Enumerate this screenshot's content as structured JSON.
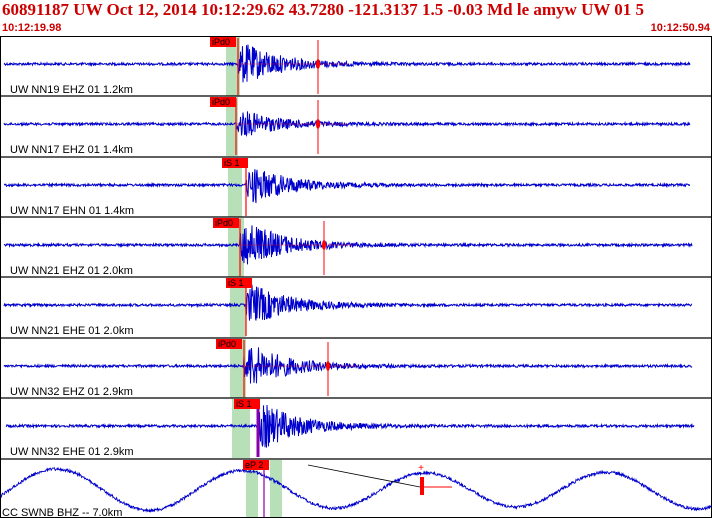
{
  "header": {
    "title": "60891187 UW Oct 12, 2014 10:12:29.62   43.7280 -121.3137  1.5 -0.03 Md le amyw UW 01   5",
    "start_time": "10:12:19.98",
    "end_time": "10:12:50.94"
  },
  "colors": {
    "trace": "#0000cc",
    "pick": "#ff0000",
    "window": "#b8e0b8",
    "border": "#000000",
    "header_text": "#cc0000"
  },
  "traces": [
    {
      "label": "UW NN19 EHZ 01 1.2km",
      "pick": "iPd0"
    },
    {
      "label": "UW NN17 EHZ 01 1.4km",
      "pick": "iPd0"
    },
    {
      "label": "UW NN17 EHN 01 1.4km",
      "pick": "iS 1"
    },
    {
      "label": "UW NN21 EHZ 01 2.0km",
      "pick": "iPd0"
    },
    {
      "label": "UW NN21 EHE 01 2.0km",
      "pick": "iS 1"
    },
    {
      "label": "UW NN32 EHZ 01 2.9km",
      "pick": "iPd0"
    },
    {
      "label": "UW NN32 EHE 01 2.9km",
      "pick": "iS 1"
    },
    {
      "label": "CC SWNB BHZ -- 7.0km",
      "pick": "eP 2"
    }
  ]
}
